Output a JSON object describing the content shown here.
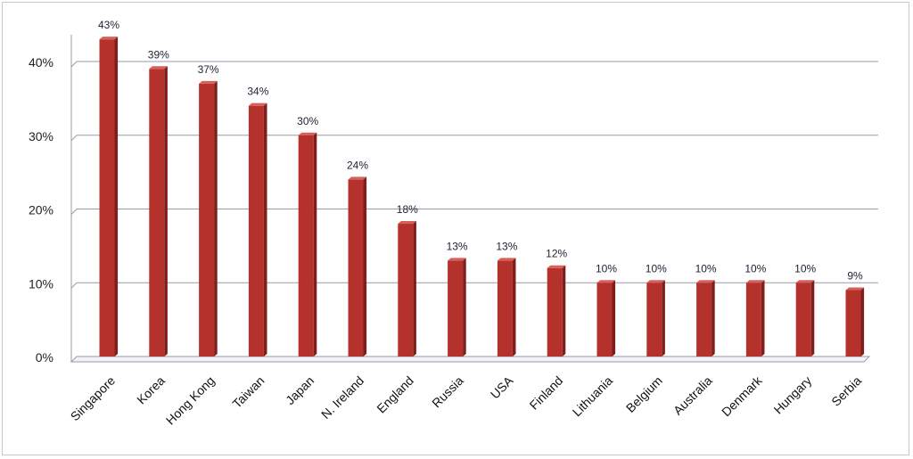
{
  "chart_data": {
    "type": "bar",
    "categories": [
      "Singapore",
      "Korea",
      "Hong Kong",
      "Taiwan",
      "Japan",
      "N. Ireland",
      "England",
      "Russia",
      "USA",
      "Finland",
      "Lithuania",
      "Belgium",
      "Australia",
      "Denmark",
      "Hungary",
      "Serbia"
    ],
    "values": [
      43,
      39,
      37,
      34,
      30,
      24,
      18,
      13,
      13,
      12,
      10,
      10,
      10,
      10,
      10,
      9
    ],
    "data_labels": [
      "43%",
      "39%",
      "37%",
      "34%",
      "30%",
      "24%",
      "18%",
      "13%",
      "13%",
      "12%",
      "10%",
      "10%",
      "10%",
      "10%",
      "10%",
      "9%"
    ],
    "yticks": [
      0,
      10,
      20,
      30,
      40
    ],
    "ytick_labels": [
      "0%",
      "10%",
      "20%",
      "30%",
      "40%"
    ],
    "ylim": [
      0,
      40
    ],
    "grid": true,
    "legend": "none",
    "bar_color": "#b5312c",
    "bar_side_color": "#7e1f1b",
    "bar_top_color": "#d9605a"
  }
}
